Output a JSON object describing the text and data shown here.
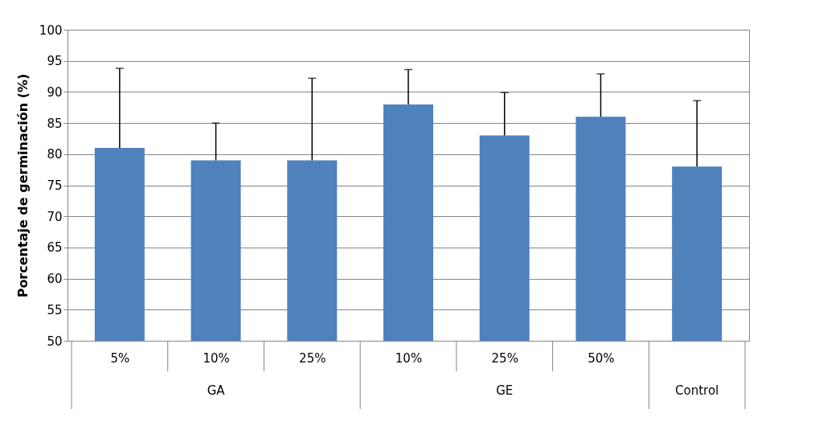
{
  "chart_data": {
    "type": "bar",
    "ylabel": "Porcentaje de germinación (%)",
    "categories": [
      "5%",
      "10%",
      "25%",
      "10%",
      "25%",
      "50%",
      null
    ],
    "values": [
      81,
      79,
      79,
      88,
      83,
      86,
      78
    ],
    "errors": [
      12.8,
      6,
      13.2,
      5.6,
      6.9,
      6.9,
      10.6
    ],
    "color": "#4f81bd",
    "ylim": [
      50,
      100
    ],
    "yticks": [
      50,
      55,
      60,
      65,
      70,
      75,
      80,
      85,
      90,
      95,
      100
    ],
    "grid": "y",
    "annotations": [
      "GA",
      "GE",
      "Control"
    ]
  }
}
